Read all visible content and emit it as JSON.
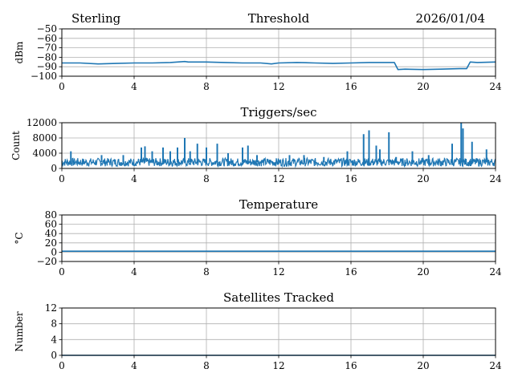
{
  "header": {
    "left": "Sterling",
    "right": "2026/01/04"
  },
  "colors": {
    "series": "#1f77b4",
    "grid": "#b0b0b0",
    "axes": "#000000"
  },
  "chart_data": [
    {
      "type": "line",
      "title": "Threshold",
      "ylabel": "dBm",
      "xlim": [
        0,
        24
      ],
      "ylim": [
        -100,
        -50
      ],
      "xticks": [
        0,
        4,
        8,
        12,
        16,
        20,
        24
      ],
      "yticks": [
        -100,
        -90,
        -80,
        -70,
        -60,
        -50
      ],
      "grid": true,
      "series": [
        {
          "x": [
            0,
            1,
            2,
            3,
            4,
            5,
            6,
            6.8,
            7,
            8,
            9,
            10,
            11,
            11.6,
            12,
            13,
            14,
            15,
            16,
            17,
            18,
            18.4,
            18.6,
            19,
            20,
            21,
            22,
            22.4,
            22.6,
            23,
            24
          ],
          "y": [
            -86,
            -86,
            -87,
            -86.5,
            -86,
            -86,
            -85.5,
            -84.5,
            -85,
            -85,
            -85.5,
            -86,
            -86,
            -87,
            -86,
            -85.5,
            -86,
            -86.5,
            -86,
            -85.5,
            -85.5,
            -85.5,
            -93,
            -92.5,
            -93,
            -92.5,
            -92,
            -92,
            -85,
            -85.5,
            -85
          ]
        }
      ]
    },
    {
      "type": "line",
      "title": "Triggers/sec",
      "ylabel": "Count",
      "xlim": [
        0,
        24
      ],
      "ylim": [
        0,
        12000
      ],
      "xticks": [
        0,
        4,
        8,
        12,
        16,
        20,
        24
      ],
      "yticks": [
        0,
        4000,
        8000,
        12000
      ],
      "grid": true,
      "baseline": 1600,
      "spikes": [
        {
          "x": 0.5,
          "y": 4500
        },
        {
          "x": 2.2,
          "y": 3500
        },
        {
          "x": 3.4,
          "y": 3500
        },
        {
          "x": 4.4,
          "y": 5500
        },
        {
          "x": 4.6,
          "y": 5800
        },
        {
          "x": 5.0,
          "y": 4500
        },
        {
          "x": 5.6,
          "y": 5500
        },
        {
          "x": 6.0,
          "y": 4500
        },
        {
          "x": 6.4,
          "y": 5500
        },
        {
          "x": 6.8,
          "y": 8000
        },
        {
          "x": 7.1,
          "y": 4500
        },
        {
          "x": 7.5,
          "y": 6500
        },
        {
          "x": 8.0,
          "y": 5500
        },
        {
          "x": 8.6,
          "y": 6500
        },
        {
          "x": 9.2,
          "y": 4000
        },
        {
          "x": 10.0,
          "y": 5500
        },
        {
          "x": 10.3,
          "y": 6000
        },
        {
          "x": 10.8,
          "y": 3500
        },
        {
          "x": 12.6,
          "y": 3500
        },
        {
          "x": 13.4,
          "y": 3500
        },
        {
          "x": 14.5,
          "y": 3000
        },
        {
          "x": 15.8,
          "y": 4500
        },
        {
          "x": 16.7,
          "y": 9000
        },
        {
          "x": 17.0,
          "y": 10000
        },
        {
          "x": 17.4,
          "y": 6000
        },
        {
          "x": 17.6,
          "y": 5000
        },
        {
          "x": 18.1,
          "y": 9500
        },
        {
          "x": 18.5,
          "y": 3000
        },
        {
          "x": 19.4,
          "y": 4500
        },
        {
          "x": 20.3,
          "y": 3500
        },
        {
          "x": 21.6,
          "y": 6500
        },
        {
          "x": 22.1,
          "y": 12000
        },
        {
          "x": 22.2,
          "y": 10500
        },
        {
          "x": 22.7,
          "y": 7000
        },
        {
          "x": 23.5,
          "y": 5000
        }
      ]
    },
    {
      "type": "line",
      "title": "Temperature",
      "ylabel": "°C",
      "xlim": [
        0,
        24
      ],
      "ylim": [
        -20,
        80
      ],
      "xticks": [
        0,
        4,
        8,
        12,
        16,
        20,
        24
      ],
      "yticks": [
        -20,
        0,
        20,
        40,
        60,
        80
      ],
      "grid": true,
      "series": [
        {
          "x": [
            0,
            24
          ],
          "y": [
            2,
            2
          ]
        }
      ]
    },
    {
      "type": "line",
      "title": "Satellites Tracked",
      "ylabel": "Number",
      "xlim": [
        0,
        24
      ],
      "ylim": [
        0,
        12
      ],
      "xticks": [
        0,
        4,
        8,
        12,
        16,
        20,
        24
      ],
      "yticks": [
        0,
        4,
        8,
        12
      ],
      "grid": true,
      "series": [
        {
          "x": [
            0,
            24
          ],
          "y": [
            0,
            0
          ]
        }
      ]
    }
  ]
}
